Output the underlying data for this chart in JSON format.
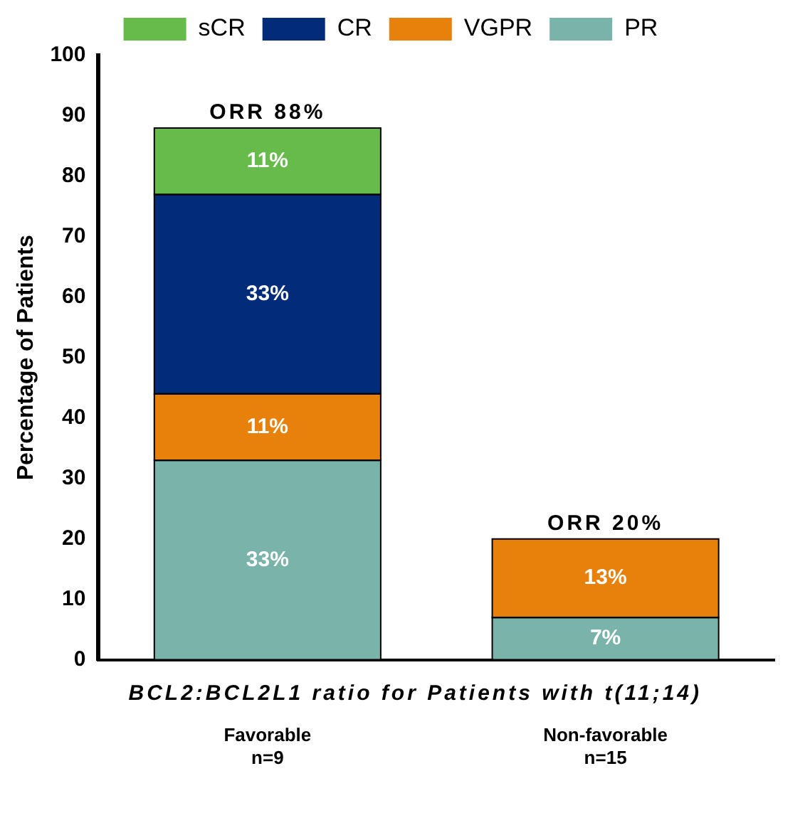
{
  "chart_data": {
    "type": "bar",
    "stacked": true,
    "xlabel": "BCL2:BCL2L1 ratio for Patients with t(11;14)",
    "ylabel": "Percentage of Patients",
    "categories": [
      "Favorable\nn=9",
      "Non-favorable\nn=15"
    ],
    "series": [
      {
        "name": "PR",
        "color": "#7ab3a9",
        "values": [
          33,
          7
        ],
        "value_labels": [
          "33%",
          "7%"
        ]
      },
      {
        "name": "VGPR",
        "color": "#e8800c",
        "values": [
          11,
          13
        ],
        "value_labels": [
          "11%",
          "13%"
        ]
      },
      {
        "name": "CR",
        "color": "#022c7a",
        "values": [
          33,
          0
        ],
        "value_labels": [
          "33%",
          null
        ]
      },
      {
        "name": "sCR",
        "color": "#66bb4b",
        "values": [
          11,
          0
        ],
        "value_labels": [
          "11%",
          null
        ]
      }
    ],
    "totals": [
      "ORR 88%",
      "ORR 20%"
    ],
    "ylim": [
      0,
      100
    ],
    "yticks": [
      0,
      10,
      20,
      30,
      40,
      50,
      60,
      70,
      80,
      90,
      100
    ],
    "grid": false,
    "legend": "top"
  }
}
